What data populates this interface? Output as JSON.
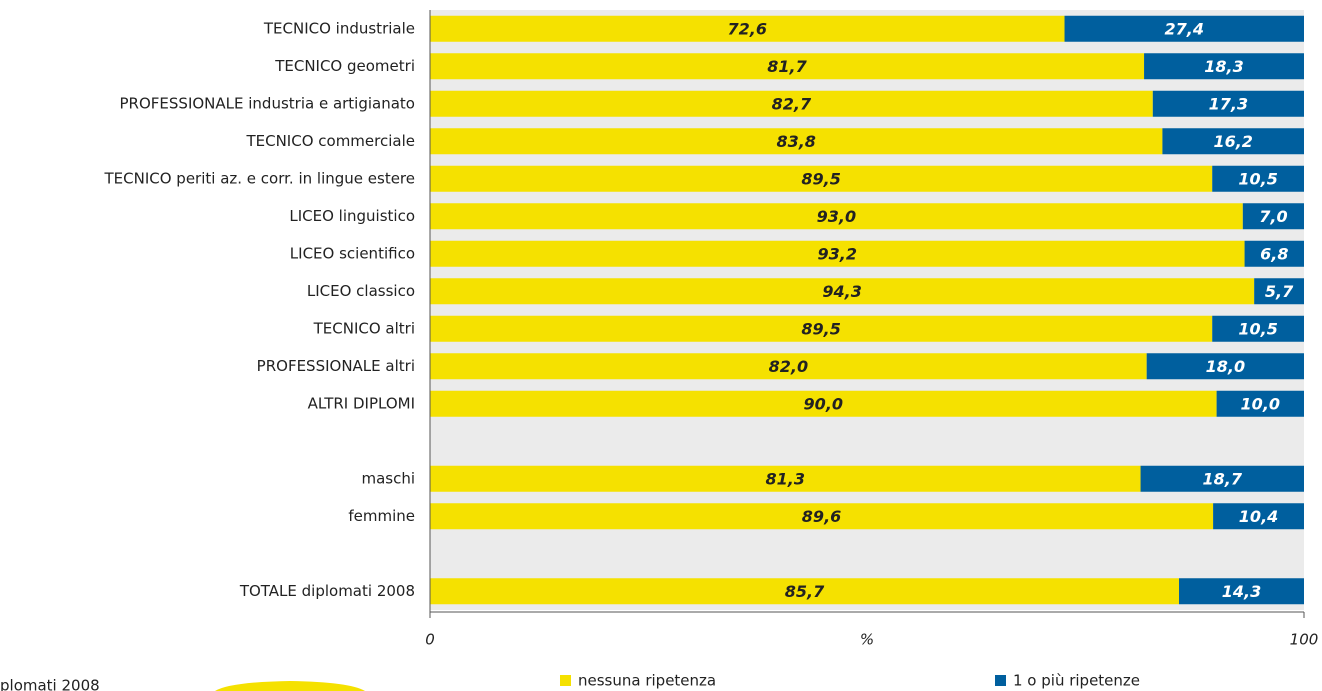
{
  "chart_data": {
    "type": "stacked_bar_horizontal",
    "categories": [
      "TECNICO industriale",
      "TECNICO geometri",
      "PROFESSIONALE industria e artigianato",
      "TECNICO commerciale",
      "TECNICO periti az. e corr. in lingue estere",
      "LICEO linguistico",
      "LICEO scientifico",
      "LICEO classico",
      "TECNICO altri",
      "PROFESSIONALE altri",
      "ALTRI DIPLOMI",
      null,
      "maschi",
      "femmine",
      null,
      "TOTALE diplomati 2008"
    ],
    "series": [
      {
        "name": "nessuna ripetenza",
        "color": "#f5e100",
        "values": [
          72.6,
          81.7,
          82.7,
          83.8,
          89.5,
          93.0,
          93.2,
          94.3,
          89.5,
          82.0,
          90.0,
          null,
          81.3,
          89.6,
          null,
          85.7
        ],
        "value_labels": [
          "72,6",
          "81,7",
          "82,7",
          "83,8",
          "89,5",
          "93,0",
          "93,2",
          "94,3",
          "89,5",
          "82,0",
          "90,0",
          null,
          "81,3",
          "89,6",
          null,
          "85,7"
        ]
      },
      {
        "name": "1 o più ripetenze",
        "color": "#005f9e",
        "values": [
          27.4,
          18.3,
          17.3,
          16.2,
          10.5,
          7.0,
          6.8,
          5.7,
          10.5,
          18.0,
          10.0,
          null,
          18.7,
          10.4,
          null,
          14.3
        ],
        "value_labels": [
          "27,4",
          "18,3",
          "17,3",
          "16,2",
          "10,5",
          "7,0",
          "6,8",
          "5,7",
          "10,5",
          "18,0",
          "10,0",
          null,
          "18,7",
          "10,4",
          null,
          "14,3"
        ]
      }
    ],
    "x_label": "%",
    "xlim": [
      0,
      100
    ],
    "xticks": [
      0,
      100
    ],
    "legend": "bottom",
    "note": "plomati 2008"
  }
}
